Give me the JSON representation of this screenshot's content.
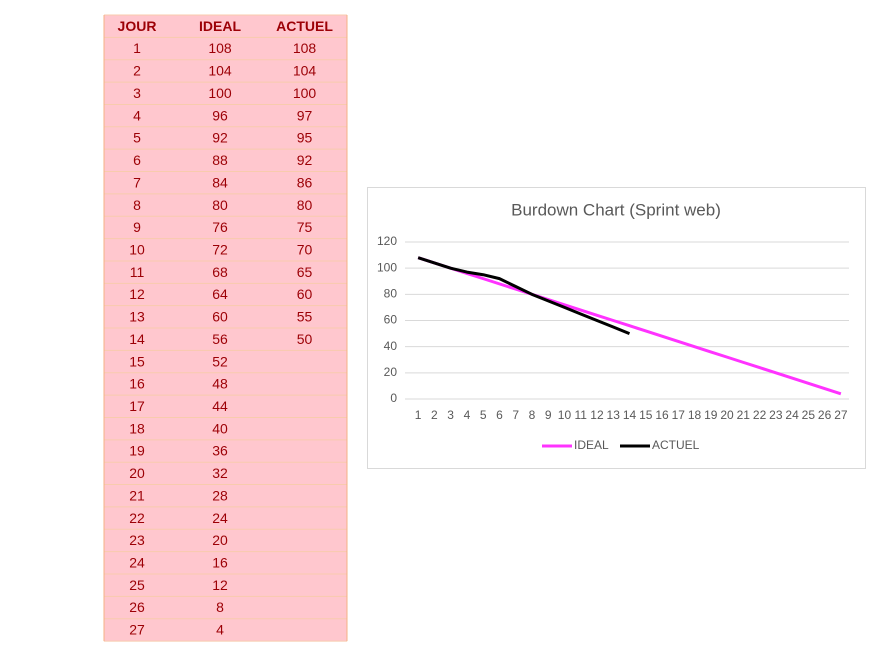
{
  "table": {
    "header": [
      "JOUR",
      "IDEAL",
      "ACTUEL"
    ],
    "rows": [
      [
        1,
        108,
        108
      ],
      [
        2,
        104,
        104
      ],
      [
        3,
        100,
        100
      ],
      [
        4,
        96,
        97
      ],
      [
        5,
        92,
        95
      ],
      [
        6,
        88,
        92
      ],
      [
        7,
        84,
        86
      ],
      [
        8,
        80,
        80
      ],
      [
        9,
        76,
        75
      ],
      [
        10,
        72,
        70
      ],
      [
        11,
        68,
        65
      ],
      [
        12,
        64,
        60
      ],
      [
        13,
        60,
        55
      ],
      [
        14,
        56,
        50
      ],
      [
        15,
        52,
        null
      ],
      [
        16,
        48,
        null
      ],
      [
        17,
        44,
        null
      ],
      [
        18,
        40,
        null
      ],
      [
        19,
        36,
        null
      ],
      [
        20,
        32,
        null
      ],
      [
        21,
        28,
        null
      ],
      [
        22,
        24,
        null
      ],
      [
        23,
        20,
        null
      ],
      [
        24,
        16,
        null
      ],
      [
        25,
        12,
        null
      ],
      [
        26,
        8,
        null
      ],
      [
        27,
        4,
        null
      ]
    ]
  },
  "chart_data": {
    "type": "line",
    "title": "Burdown Chart (Sprint web)",
    "categories": [
      1,
      2,
      3,
      4,
      5,
      6,
      7,
      8,
      9,
      10,
      11,
      12,
      13,
      14,
      15,
      16,
      17,
      18,
      19,
      20,
      21,
      22,
      23,
      24,
      25,
      26,
      27
    ],
    "series": [
      {
        "name": "IDEAL",
        "color": "#ff33ff",
        "values": [
          108,
          104,
          100,
          96,
          92,
          88,
          84,
          80,
          76,
          72,
          68,
          64,
          60,
          56,
          52,
          48,
          44,
          40,
          36,
          32,
          28,
          24,
          20,
          16,
          12,
          8,
          4
        ]
      },
      {
        "name": "ACTUEL",
        "color": "#000000",
        "values": [
          108,
          104,
          100,
          97,
          95,
          92,
          86,
          80,
          75,
          70,
          65,
          60,
          55,
          50,
          null,
          null,
          null,
          null,
          null,
          null,
          null,
          null,
          null,
          null,
          null,
          null,
          null
        ]
      }
    ],
    "ylim": [
      0,
      120
    ],
    "yticks": [
      0,
      20,
      40,
      60,
      80,
      100,
      120
    ],
    "grid": true,
    "legend": "bottom"
  }
}
